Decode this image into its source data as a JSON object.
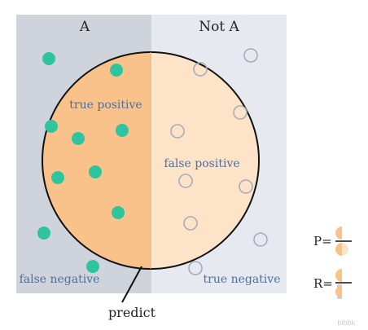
{
  "regions": {
    "left_title": "A",
    "right_title": "Not A"
  },
  "circle_labels": {
    "true_positive": "true positive",
    "false_positive": "false positive",
    "false_negative": "false negative",
    "true_negative": "true negative",
    "predict": "predict"
  },
  "formulas": {
    "precision_prefix": "P=",
    "recall_prefix": "R="
  },
  "watermark": "bibbk",
  "colors": {
    "left_region": "#cfd4dc",
    "right_region": "#e6e9ef",
    "circle_left": "#f8c28a",
    "circle_right": "#fde3c8",
    "positive_dot": "#2ec4a0",
    "negative_dot": "#a7adb6",
    "label_text": "#4f6f9a"
  }
}
